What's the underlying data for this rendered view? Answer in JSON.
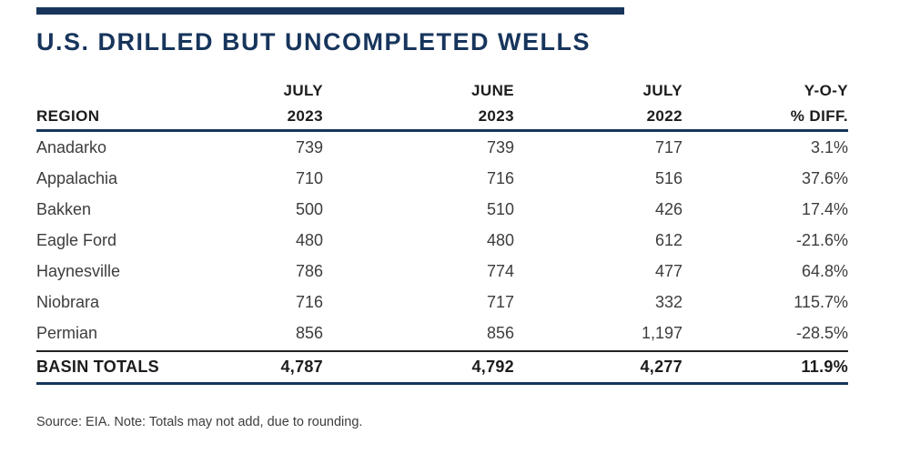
{
  "title": "U.S. DRILLED BUT UNCOMPLETED WELLS",
  "footnote": "Source: EIA. Note: Totals may not add, due to rounding.",
  "colors": {
    "navy": "#17355c",
    "header_text": "#1c1c1c",
    "body_text": "#3d3d3d",
    "thin_rule": "#222222",
    "background": "#ffffff"
  },
  "chart_data": {
    "type": "table",
    "title": "U.S. DRILLED BUT UNCOMPLETED WELLS",
    "columns": [
      {
        "line1": "",
        "line2": "REGION"
      },
      {
        "line1": "JULY",
        "line2": "2023"
      },
      {
        "line1": "JUNE",
        "line2": "2023"
      },
      {
        "line1": "JULY",
        "line2": "2022"
      },
      {
        "line1": "Y-O-Y",
        "line2": "% DIFF."
      }
    ],
    "rows": [
      {
        "region": "Anadarko",
        "july_2023": "739",
        "june_2023": "739",
        "july_2022": "717",
        "yoy_diff": "3.1%"
      },
      {
        "region": "Appalachia",
        "july_2023": "710",
        "june_2023": "716",
        "july_2022": "516",
        "yoy_diff": "37.6%"
      },
      {
        "region": "Bakken",
        "july_2023": "500",
        "june_2023": "510",
        "july_2022": "426",
        "yoy_diff": "17.4%"
      },
      {
        "region": "Eagle Ford",
        "july_2023": "480",
        "june_2023": "480",
        "july_2022": "612",
        "yoy_diff": "-21.6%"
      },
      {
        "region": "Haynesville",
        "july_2023": "786",
        "june_2023": "774",
        "july_2022": "477",
        "yoy_diff": "64.8%"
      },
      {
        "region": "Niobrara",
        "july_2023": "716",
        "june_2023": "717",
        "july_2022": "332",
        "yoy_diff": "115.7%"
      },
      {
        "region": "Permian",
        "july_2023": "856",
        "june_2023": "856",
        "july_2022": "1,197",
        "yoy_diff": "-28.5%"
      }
    ],
    "totals_row": {
      "region": "BASIN TOTALS",
      "july_2023": "4,787",
      "june_2023": "4,792",
      "july_2022": "4,277",
      "yoy_diff": "11.9%"
    }
  }
}
